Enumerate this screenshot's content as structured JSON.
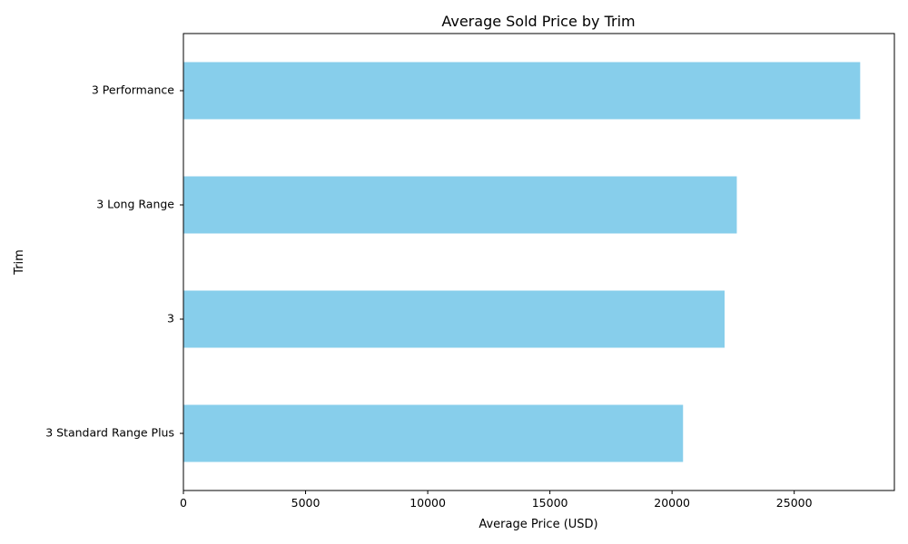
{
  "chart_data": {
    "type": "bar",
    "orientation": "horizontal",
    "title": "Average Sold Price by Trim",
    "xlabel": "Average Price (USD)",
    "ylabel": "Trim",
    "categories": [
      "3 Standard Range Plus",
      "3",
      "3 Long Range",
      "3 Performance"
    ],
    "values": [
      20450,
      22150,
      22650,
      27700
    ],
    "xlim": [
      0,
      29100
    ],
    "xticks": [
      0,
      5000,
      10000,
      15000,
      20000,
      25000
    ],
    "bar_color": "#87CEEB",
    "grid": false
  }
}
